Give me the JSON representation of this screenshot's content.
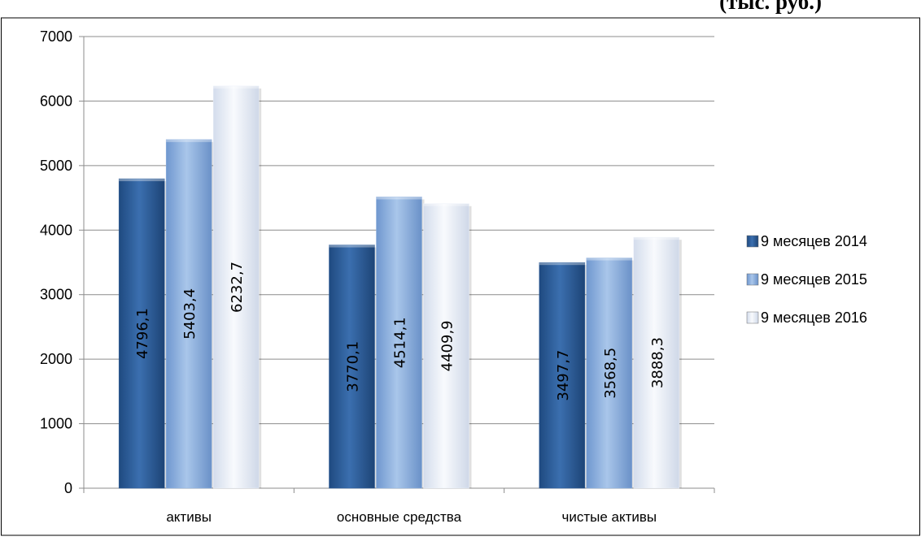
{
  "chart_data": {
    "type": "bar",
    "title": "(тыс. руб.)",
    "categories": [
      "активы",
      "основные средства",
      "чистые активы"
    ],
    "series": [
      {
        "name": "9 месяцев 2014",
        "values": [
          4796.1,
          3770.1,
          3497.7
        ],
        "labels": [
          "4796,1",
          "3770,1",
          "3497,7"
        ],
        "color": "#2f5f9b"
      },
      {
        "name": "9 месяцев 2015",
        "values": [
          5403.4,
          4514.1,
          3568.5
        ],
        "labels": [
          "5403,4",
          "4514,1",
          "3568,5"
        ],
        "color": "#8fb1de"
      },
      {
        "name": "9 месяцев 2016",
        "values": [
          6232.7,
          4409.9,
          3888.3
        ],
        "labels": [
          "6232,7",
          "4409,9",
          "3888,3"
        ],
        "color": "#e9eef8"
      }
    ],
    "ylim": [
      0,
      7000
    ],
    "yticks": [
      "0",
      "1000",
      "2000",
      "3000",
      "4000",
      "5000",
      "6000",
      "7000"
    ],
    "grid": true,
    "legend": "right"
  }
}
